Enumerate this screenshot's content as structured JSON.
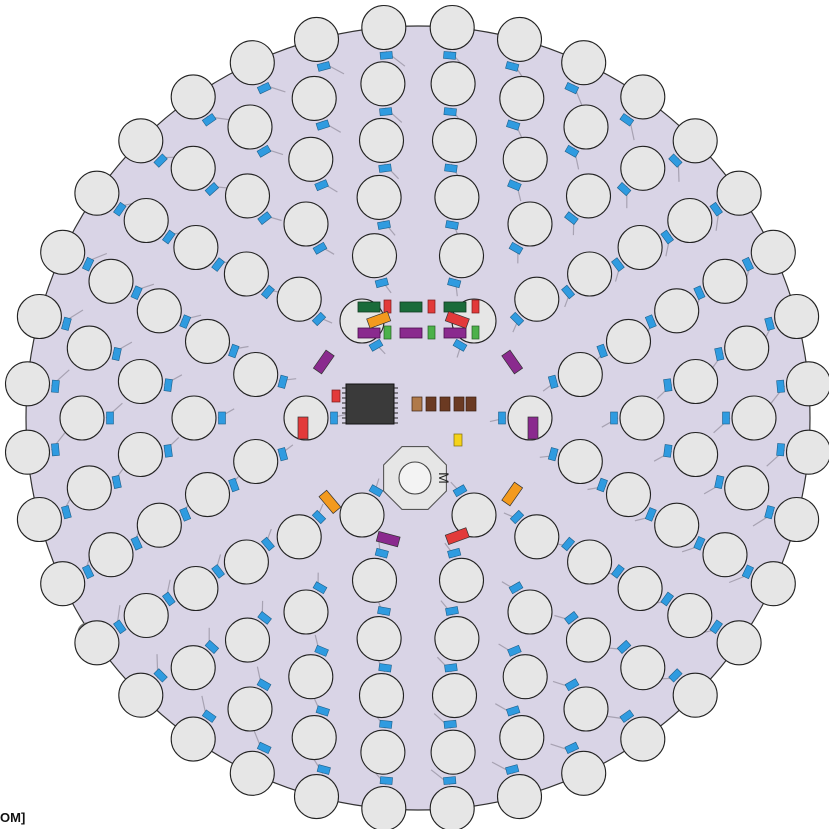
{
  "board": {
    "view_label": "OM]",
    "motor_mark": "M"
  },
  "ring_led_counts": [
    6,
    12,
    18,
    24,
    30,
    36,
    42
  ],
  "colors": {
    "board_fill": "#d9d4e6",
    "board_stroke": "#333333",
    "led_fill": "#e6e6e6",
    "led_stroke": "#222222",
    "led_pad": "#2f9be0",
    "trace": "#a7a2b2",
    "capacitor_dark_green": "#1a6b3a",
    "capacitor_green": "#4cb14a",
    "resistor_purple": "#8a2a8e",
    "resistor_red": "#e23a3a",
    "resistor_orange": "#f39a1e",
    "resistor_brown": "#6b3a22",
    "crystal_yellow": "#f5d31a",
    "chip_fill": "#3a3a3a",
    "motor_fill": "#e6e6e6"
  },
  "icons": {
    "motor": "motor-octagon-icon",
    "mounting_hole": "mounting-hole-icon",
    "microcontroller": "chip-icon"
  }
}
